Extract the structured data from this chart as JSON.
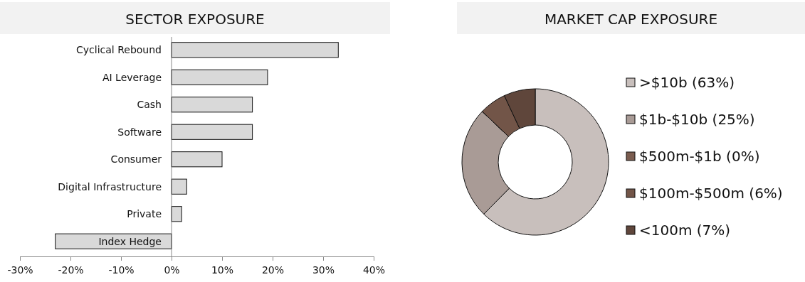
{
  "chart_data": [
    {
      "type": "bar",
      "title": "SECTOR EXPOSURE",
      "orientation": "horizontal",
      "categories": [
        "Cyclical Rebound",
        "AI Leverage",
        "Cash",
        "Software",
        "Consumer",
        "Digital Infrastructure",
        "Private",
        "Index Hedge"
      ],
      "values": [
        33,
        19,
        16,
        16,
        10,
        3,
        2,
        -23
      ],
      "color": "#d9d9d9",
      "xlim": [
        -30,
        40
      ],
      "xticks": [
        {
          "value": -30,
          "label": "-30%"
        },
        {
          "value": -20,
          "label": "-20%"
        },
        {
          "value": -10,
          "label": "-10%"
        },
        {
          "value": 0,
          "label": "0%"
        },
        {
          "value": 10,
          "label": "10%"
        },
        {
          "value": 20,
          "label": "20%"
        },
        {
          "value": 30,
          "label": "30%"
        },
        {
          "value": 40,
          "label": "40%"
        }
      ],
      "grid": false
    },
    {
      "type": "donut",
      "title": "MARKET CAP EXPOSURE",
      "categories": [
        ">$10b (63%)",
        "$1b-$10b (25%)",
        "$500m-$1b (0%)",
        "$100m-$500m (6%)",
        "<100m (7%)"
      ],
      "values": [
        63,
        25,
        0,
        6,
        7
      ],
      "colors": [
        "#c8bfbc",
        "#a99b96",
        "#7a5c4f",
        "#725548",
        "#5f463b"
      ],
      "legend": "right"
    }
  ]
}
